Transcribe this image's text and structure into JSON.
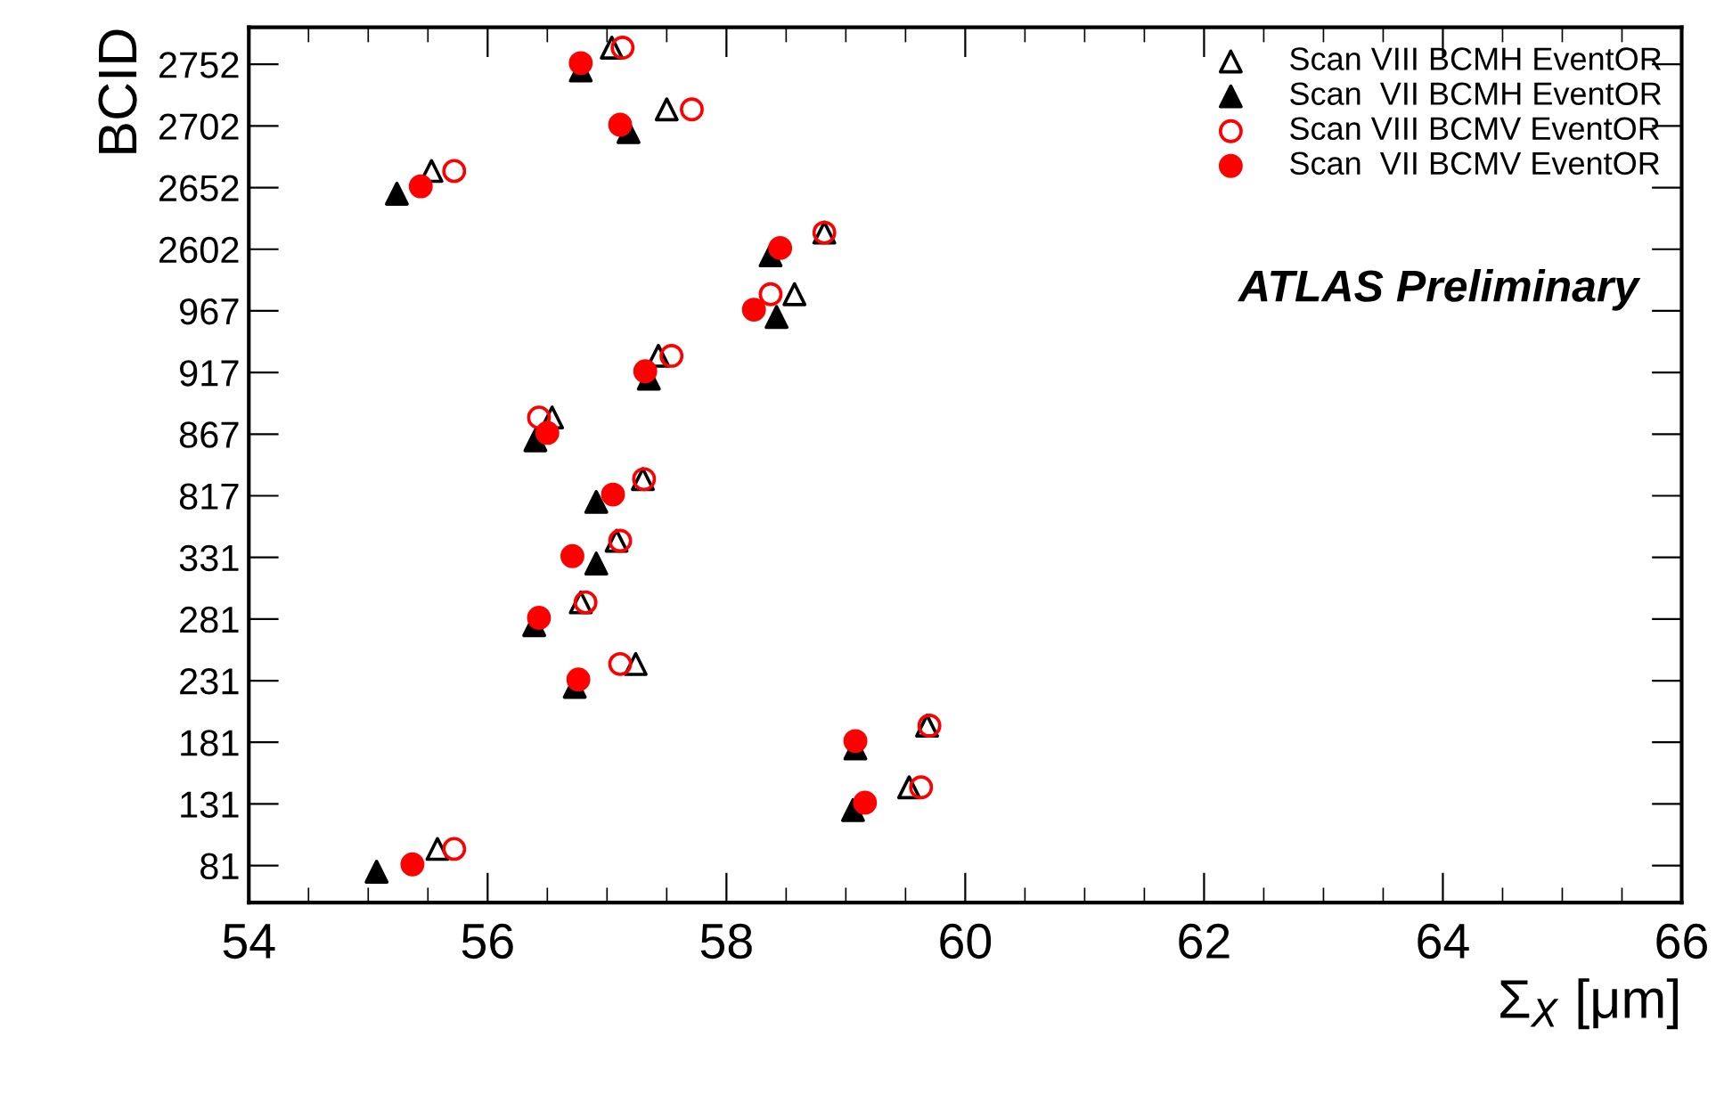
{
  "chart_data": {
    "type": "scatter",
    "orientation": "horizontal",
    "xlabel": "Σ$_{X}$ [μm]",
    "ylabel": "BCID",
    "categories": [
      "2752",
      "2702",
      "2652",
      "2602",
      "967",
      "917",
      "867",
      "817",
      "331",
      "281",
      "231",
      "181",
      "131",
      "81"
    ],
    "xlim": [
      54,
      66
    ],
    "xticks": [
      54,
      56,
      58,
      60,
      62,
      64,
      66
    ],
    "grid": false,
    "legend": "top right",
    "annotations": [
      "ATLAS Preliminary"
    ],
    "series": [
      {
        "name": "Scan VIII BCMH EventOR",
        "color": "#000000",
        "marker": "triangle",
        "values": [
          57.04,
          57.5,
          55.53,
          58.82,
          58.57,
          57.43,
          56.54,
          57.3,
          57.08,
          56.78,
          57.24,
          59.68,
          59.53,
          55.58
        ]
      },
      {
        "name": "Scan  VII BCMH EventOR",
        "color": "#000000",
        "marker": "triangle",
        "values": [
          56.78,
          57.18,
          55.24,
          58.37,
          58.42,
          57.35,
          56.4,
          56.91,
          56.91,
          56.39,
          56.73,
          59.08,
          59.06,
          55.07
        ]
      },
      {
        "name": "Scan VIII BCMV EventOR",
        "color": "#ff0000",
        "marker": "circle",
        "values": [
          57.13,
          57.71,
          55.72,
          58.82,
          58.37,
          57.54,
          56.43,
          57.31,
          57.11,
          56.82,
          57.11,
          59.7,
          59.63,
          55.72
        ]
      },
      {
        "name": "Scan  VII BCMV EventOR",
        "color": "#ff0000",
        "marker": "circle",
        "values": [
          56.78,
          57.11,
          55.44,
          58.45,
          58.23,
          57.32,
          56.5,
          57.05,
          56.71,
          56.43,
          56.76,
          59.08,
          59.16,
          55.37
        ]
      }
    ]
  }
}
